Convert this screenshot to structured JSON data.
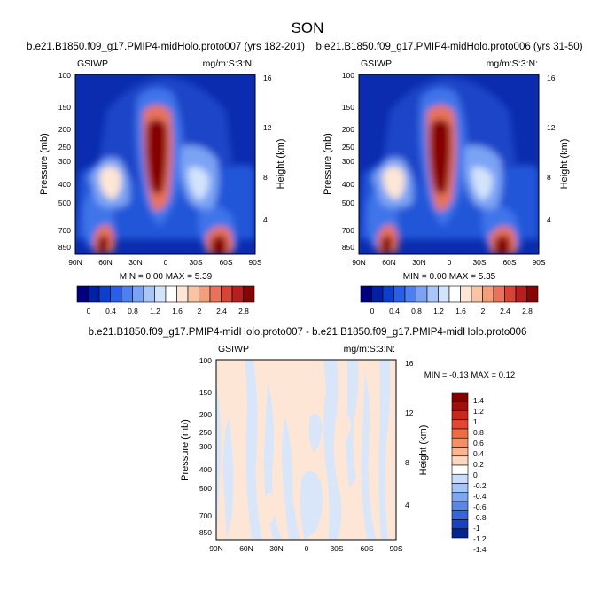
{
  "figure": {
    "title": "SON"
  },
  "chart_data": [
    {
      "type": "heatmap",
      "title": "b.e21.B1850.f09_g17.PMIP4-midHolo.proto007 (yrs 182-201)",
      "left_label": "GSIWP",
      "right_label": "mg/m:S:3:N:",
      "ylabel": "Pressure (mb)",
      "y2label": "Height (km)",
      "x_ticks": [
        "90N",
        "60N",
        "30N",
        "0",
        "30S",
        "60S",
        "90S"
      ],
      "y_ticks": [
        "100",
        "150",
        "200",
        "250",
        "300",
        "400",
        "500",
        "700",
        "850"
      ],
      "y2_ticks": [
        "16",
        "12",
        "8",
        "4"
      ],
      "min_max_text": "MIN =  0.00  MAX =   5.39",
      "colorbar": {
        "labels": [
          "0",
          "0.4",
          "0.8",
          "1.2",
          "1.6",
          "2",
          "2.4",
          "2.8"
        ],
        "colors": [
          "#00007f",
          "#0020a6",
          "#0b3fcc",
          "#2a5ee6",
          "#4d7ff0",
          "#7aa3f4",
          "#a9c6f8",
          "#d3e3fb",
          "#ffffff",
          "#fde6d6",
          "#f9c4a6",
          "#f39f7c",
          "#e8735a",
          "#d44536",
          "#b3201f",
          "#860606"
        ]
      }
    },
    {
      "type": "heatmap",
      "title": "b.e21.B1850.f09_g17.PMIP4-midHolo.proto006 (yrs 31-50)",
      "left_label": "GSIWP",
      "right_label": "mg/m:S:3:N:",
      "ylabel": "Pressure (mb)",
      "y2label": "Height (km)",
      "x_ticks": [
        "90N",
        "60N",
        "30N",
        "0",
        "30S",
        "60S",
        "90S"
      ],
      "y_ticks": [
        "100",
        "150",
        "200",
        "250",
        "300",
        "400",
        "500",
        "700",
        "850"
      ],
      "y2_ticks": [
        "16",
        "12",
        "8",
        "4"
      ],
      "min_max_text": "MIN =  0.00  MAX =   5.35",
      "colorbar": {
        "labels": [
          "0",
          "0.4",
          "0.8",
          "1.2",
          "1.6",
          "2",
          "2.4",
          "2.8"
        ],
        "colors": [
          "#00007f",
          "#0020a6",
          "#0b3fcc",
          "#2a5ee6",
          "#4d7ff0",
          "#7aa3f4",
          "#a9c6f8",
          "#d3e3fb",
          "#ffffff",
          "#fde6d6",
          "#f9c4a6",
          "#f39f7c",
          "#e8735a",
          "#d44536",
          "#b3201f",
          "#860606"
        ]
      }
    },
    {
      "type": "heatmap",
      "title": "b.e21.B1850.f09_g17.PMIP4-midHolo.proto007 - b.e21.B1850.f09_g17.PMIP4-midHolo.proto006",
      "left_label": "GSIWP",
      "right_label": "mg/m:S:3:N:",
      "ylabel": "Pressure (mb)",
      "y2label": "Height (km)",
      "x_ticks": [
        "90N",
        "60N",
        "30N",
        "0",
        "30S",
        "60S",
        "90S"
      ],
      "y_ticks": [
        "100",
        "150",
        "200",
        "250",
        "300",
        "400",
        "500",
        "700",
        "850"
      ],
      "y2_ticks": [
        "16",
        "12",
        "8",
        "4"
      ],
      "min_max_text": "MIN = -0.13  MAX =   0.12",
      "colorbar": {
        "labels": [
          "1.4",
          "1.2",
          "1",
          "0.8",
          "0.6",
          "0.4",
          "0.2",
          "0",
          "-0.2",
          "-0.4",
          "-0.6",
          "-0.8",
          "-1",
          "-1.2",
          "-1.4"
        ],
        "colors": [
          "#7f0000",
          "#a50c0c",
          "#c8281c",
          "#e2482e",
          "#f06a44",
          "#f78f66",
          "#fbb391",
          "#fcd8c0",
          "#ffffff",
          "#c9dcf8",
          "#a6c4f5",
          "#7fa6ef",
          "#5a87e6",
          "#3466d8",
          "#1744bb",
          "#002690"
        ]
      }
    }
  ]
}
